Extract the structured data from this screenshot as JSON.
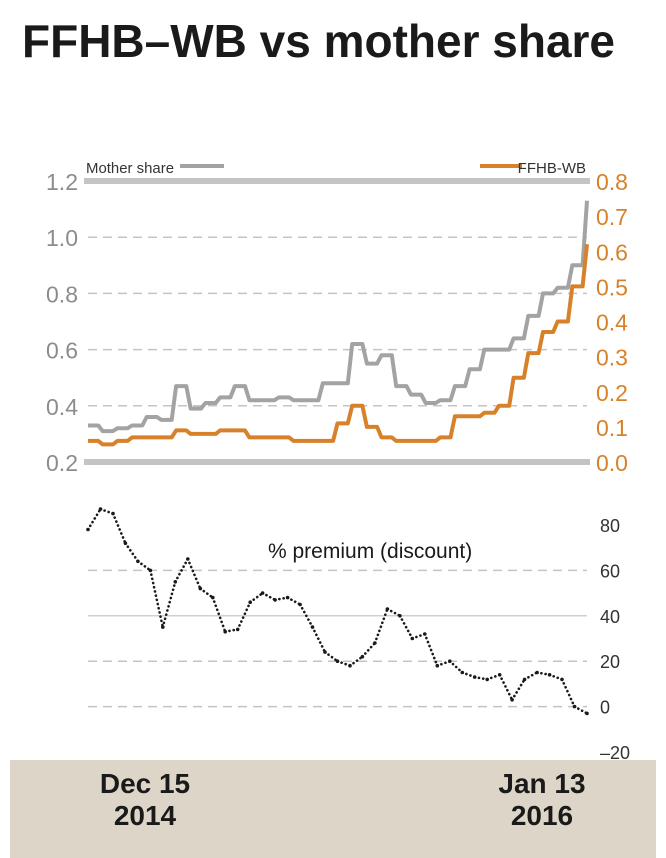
{
  "title": "FFHB–WB vs mother share",
  "colors": {
    "mother": "#a3a3a3",
    "ffhb": "#d7822b",
    "premium": "#1a1a1a",
    "axis_text_left": "#8c8c8c",
    "axis_text_right": "#d7822b",
    "footer": "#ddd6c8"
  },
  "footer": {
    "start_line1": "Dec 15",
    "start_line2": "2014",
    "end_line1": "Jan 13",
    "end_line2": "2016"
  },
  "chart_data": [
    {
      "type": "line",
      "x_start": "Dec 15 2014",
      "x_end": "Jan 13 2016",
      "left_axis": {
        "ylim": [
          0.2,
          1.2
        ],
        "ticks": [
          "0.2",
          "0.4",
          "0.6",
          "0.8",
          "1.0",
          "1.2"
        ]
      },
      "right_axis": {
        "ylim": [
          0.0,
          0.8
        ],
        "ticks": [
          "0.0",
          "0.1",
          "0.2",
          "0.3",
          "0.4",
          "0.5",
          "0.6",
          "0.7",
          "0.8"
        ]
      },
      "grid": true,
      "series": [
        {
          "name": "Mother share",
          "axis": "left",
          "values": [
            0.33,
            0.31,
            0.32,
            0.33,
            0.36,
            0.35,
            0.47,
            0.39,
            0.41,
            0.43,
            0.47,
            0.42,
            0.42,
            0.43,
            0.42,
            0.42,
            0.48,
            0.48,
            0.62,
            0.55,
            0.58,
            0.47,
            0.44,
            0.41,
            0.42,
            0.47,
            0.53,
            0.6,
            0.6,
            0.64,
            0.72,
            0.8,
            0.82,
            0.9,
            1.13
          ]
        },
        {
          "name": "FFHB-WB",
          "axis": "right",
          "values": [
            0.06,
            0.05,
            0.06,
            0.07,
            0.07,
            0.07,
            0.09,
            0.08,
            0.08,
            0.09,
            0.09,
            0.07,
            0.07,
            0.07,
            0.06,
            0.06,
            0.06,
            0.11,
            0.16,
            0.1,
            0.07,
            0.06,
            0.06,
            0.06,
            0.07,
            0.13,
            0.13,
            0.14,
            0.16,
            0.24,
            0.31,
            0.37,
            0.4,
            0.5,
            0.62
          ]
        }
      ]
    },
    {
      "type": "scatter",
      "title": "% premium (discount)",
      "x_start": "Dec 15 2014",
      "x_end": "Jan 13 2016",
      "ylim": [
        -20,
        90
      ],
      "ticks": [
        "–20",
        "0",
        "20",
        "40",
        "60",
        "80"
      ],
      "grid": true,
      "series": [
        {
          "values": [
            78,
            87,
            85,
            72,
            64,
            60,
            35,
            55,
            65,
            52,
            48,
            33,
            34,
            46,
            50,
            47,
            48,
            45,
            35,
            24,
            20,
            18,
            22,
            28,
            43,
            40,
            30,
            32,
            18,
            20,
            15,
            13,
            12,
            14,
            3,
            12,
            15,
            14,
            12,
            0,
            -3
          ]
        }
      ]
    }
  ]
}
